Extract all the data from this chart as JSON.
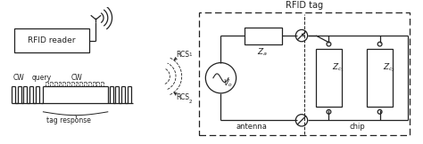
{
  "bg_color": "#ffffff",
  "line_color": "#222222",
  "title_rfid_tag": "RFID tag",
  "label_rfid_reader": "RFID reader",
  "label_cw1": "CW",
  "label_query": "query",
  "label_cw2": "CW",
  "label_tag_response": "tag response",
  "label_rcs1": "RCS",
  "label_rcs1_sub": "1",
  "label_rcs2": "RCS",
  "label_rcs2_sub": "2",
  "label_za": "$Z_a$",
  "label_vo": "$V_o$",
  "label_zc1": "$Z_{c_1}$",
  "label_zc2": "$Z_{c_2}$",
  "label_antenna": "antenna",
  "label_chip": "chip"
}
